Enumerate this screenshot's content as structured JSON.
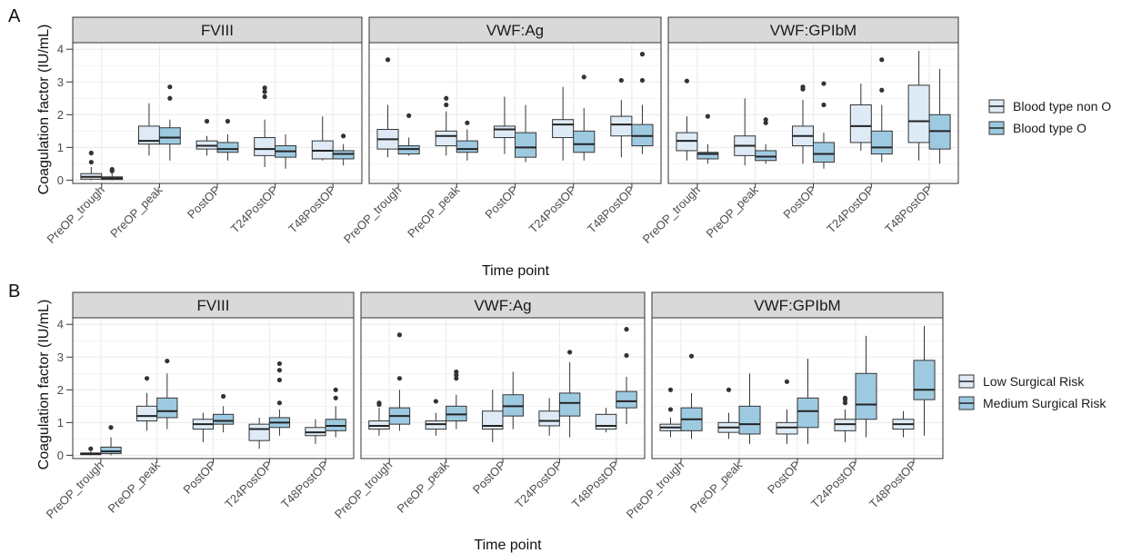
{
  "figure": {
    "panel_labels": [
      "A",
      "B"
    ],
    "x_axis_title": "Time point",
    "y_axis_title": "Coagulation factor (IU/mL)"
  },
  "colors": {
    "series_light": "#deebf7",
    "series_dark": "#9ecae1",
    "strip_fill": "#d9d9d9",
    "grid": "#ebebeb",
    "outlier": "#333333"
  },
  "chart_data": [
    {
      "type": "boxplot",
      "panel": "A",
      "facets": [
        "FVIII",
        "VWF:Ag",
        "VWF:GPIbM"
      ],
      "categories": [
        "PreOP_trough",
        "PreOP_peak",
        "PostOP",
        "T24PostOP",
        "T48PostOP"
      ],
      "xlabel": "Time point",
      "ylabel": "Coagulation factor (IU/mL)",
      "ylim": [
        -0.1,
        4.2
      ],
      "yticks": [
        0,
        1,
        2,
        3,
        4
      ],
      "grid": true,
      "legend_position": "right",
      "series": [
        {
          "name": "Blood type non O",
          "color": "#deebf7",
          "facets": {
            "FVIII": [
              {
                "min": 0.0,
                "q1": 0.03,
                "median": 0.1,
                "q3": 0.2,
                "max": 0.4,
                "outliers": [
                  0.55,
                  0.83
                ]
              },
              {
                "min": 0.75,
                "q1": 1.1,
                "median": 1.2,
                "q3": 1.65,
                "max": 2.35,
                "outliers": []
              },
              {
                "min": 0.75,
                "q1": 0.95,
                "median": 1.05,
                "q3": 1.2,
                "max": 1.35,
                "outliers": [
                  1.8
                ]
              },
              {
                "min": 0.4,
                "q1": 0.75,
                "median": 0.95,
                "q3": 1.3,
                "max": 1.85,
                "outliers": [
                  2.55,
                  2.7,
                  2.82
                ]
              },
              {
                "min": 0.6,
                "q1": 0.65,
                "median": 0.9,
                "q3": 1.2,
                "max": 1.95,
                "outliers": []
              }
            ],
            "VWF:Ag": [
              {
                "min": 0.7,
                "q1": 0.95,
                "median": 1.25,
                "q3": 1.55,
                "max": 2.3,
                "outliers": [
                  3.68
                ]
              },
              {
                "min": 0.75,
                "q1": 1.05,
                "median": 1.35,
                "q3": 1.5,
                "max": 2.1,
                "outliers": [
                  2.3,
                  2.5
                ]
              },
              {
                "min": 0.8,
                "q1": 1.3,
                "median": 1.55,
                "q3": 1.65,
                "max": 2.55,
                "outliers": []
              },
              {
                "min": 0.6,
                "q1": 1.3,
                "median": 1.7,
                "q3": 1.85,
                "max": 2.85,
                "outliers": []
              },
              {
                "min": 0.7,
                "q1": 1.35,
                "median": 1.7,
                "q3": 1.95,
                "max": 2.45,
                "outliers": [
                  3.05
                ]
              }
            ],
            "VWF:GPIbM": [
              {
                "min": 0.6,
                "q1": 0.9,
                "median": 1.2,
                "q3": 1.45,
                "max": 1.95,
                "outliers": [
                  3.03
                ]
              },
              {
                "min": 0.45,
                "q1": 0.75,
                "median": 1.05,
                "q3": 1.35,
                "max": 2.5,
                "outliers": []
              },
              {
                "min": 0.5,
                "q1": 1.05,
                "median": 1.35,
                "q3": 1.65,
                "max": 2.45,
                "outliers": [
                  2.78,
                  2.85
                ]
              },
              {
                "min": 0.9,
                "q1": 1.15,
                "median": 1.65,
                "q3": 2.3,
                "max": 2.95,
                "outliers": []
              },
              {
                "min": 0.6,
                "q1": 1.15,
                "median": 1.8,
                "q3": 2.9,
                "max": 3.95,
                "outliers": []
              }
            ]
          }
        },
        {
          "name": "Blood type O",
          "color": "#9ecae1",
          "facets": {
            "FVIII": [
              {
                "min": 0.0,
                "q1": 0.02,
                "median": 0.06,
                "q3": 0.1,
                "max": 0.2,
                "outliers": [
                  0.28,
                  0.33
                ]
              },
              {
                "min": 0.6,
                "q1": 1.1,
                "median": 1.3,
                "q3": 1.6,
                "max": 1.85,
                "outliers": [
                  2.5,
                  2.85
                ]
              },
              {
                "min": 0.6,
                "q1": 0.85,
                "median": 0.95,
                "q3": 1.15,
                "max": 1.4,
                "outliers": [
                  1.8
                ]
              },
              {
                "min": 0.35,
                "q1": 0.7,
                "median": 0.88,
                "q3": 1.05,
                "max": 1.4,
                "outliers": []
              },
              {
                "min": 0.45,
                "q1": 0.65,
                "median": 0.8,
                "q3": 0.9,
                "max": 1.1,
                "outliers": [
                  1.35
                ]
              }
            ],
            "VWF:Ag": [
              {
                "min": 0.75,
                "q1": 0.8,
                "median": 0.95,
                "q3": 1.05,
                "max": 1.3,
                "outliers": [
                  1.97
                ]
              },
              {
                "min": 0.6,
                "q1": 0.85,
                "median": 0.95,
                "q3": 1.2,
                "max": 1.55,
                "outliers": [
                  1.75
                ]
              },
              {
                "min": 0.55,
                "q1": 0.7,
                "median": 1.0,
                "q3": 1.45,
                "max": 2.3,
                "outliers": []
              },
              {
                "min": 0.6,
                "q1": 0.85,
                "median": 1.1,
                "q3": 1.5,
                "max": 2.2,
                "outliers": [
                  3.15
                ]
              },
              {
                "min": 0.8,
                "q1": 1.05,
                "median": 1.35,
                "q3": 1.7,
                "max": 2.3,
                "outliers": [
                  3.05,
                  3.85
                ]
              }
            ],
            "VWF:GPIbM": [
              {
                "min": 0.5,
                "q1": 0.65,
                "median": 0.8,
                "q3": 0.85,
                "max": 1.1,
                "outliers": [
                  1.95
                ]
              },
              {
                "min": 0.5,
                "q1": 0.6,
                "median": 0.72,
                "q3": 0.9,
                "max": 1.1,
                "outliers": [
                  1.75,
                  1.85
                ]
              },
              {
                "min": 0.35,
                "q1": 0.55,
                "median": 0.8,
                "q3": 1.15,
                "max": 1.45,
                "outliers": [
                  2.3,
                  2.95
                ]
              },
              {
                "min": 0.55,
                "q1": 0.8,
                "median": 1.0,
                "q3": 1.5,
                "max": 2.3,
                "outliers": [
                  2.75,
                  3.68
                ]
              },
              {
                "min": 0.5,
                "q1": 0.95,
                "median": 1.5,
                "q3": 2.0,
                "max": 3.4,
                "outliers": []
              }
            ]
          }
        }
      ]
    },
    {
      "type": "boxplot",
      "panel": "B",
      "facets": [
        "FVIII",
        "VWF:Ag",
        "VWF:GPIbM"
      ],
      "categories": [
        "PreOP_trough",
        "PreOP_peak",
        "PostOP",
        "T24PostOP",
        "T48PostOP"
      ],
      "xlabel": "Time point",
      "ylabel": "Coagulation factor (IU/mL)",
      "ylim": [
        -0.1,
        4.2
      ],
      "yticks": [
        0,
        1,
        2,
        3,
        4
      ],
      "grid": true,
      "legend_position": "right",
      "series": [
        {
          "name": "Low Surgical Risk",
          "color": "#deebf7",
          "facets": {
            "FVIII": [
              {
                "min": 0.0,
                "q1": 0.02,
                "median": 0.05,
                "q3": 0.07,
                "max": 0.12,
                "outliers": [
                  0.2
                ]
              },
              {
                "min": 0.75,
                "q1": 1.05,
                "median": 1.2,
                "q3": 1.5,
                "max": 1.9,
                "outliers": [
                  2.35
                ]
              },
              {
                "min": 0.4,
                "q1": 0.8,
                "median": 0.95,
                "q3": 1.1,
                "max": 1.3,
                "outliers": []
              },
              {
                "min": 0.2,
                "q1": 0.45,
                "median": 0.8,
                "q3": 0.95,
                "max": 1.15,
                "outliers": []
              },
              {
                "min": 0.35,
                "q1": 0.6,
                "median": 0.7,
                "q3": 0.85,
                "max": 1.1,
                "outliers": []
              }
            ],
            "VWF:Ag": [
              {
                "min": 0.6,
                "q1": 0.8,
                "median": 0.9,
                "q3": 1.05,
                "max": 1.45,
                "outliers": [
                  1.55,
                  1.6
                ]
              },
              {
                "min": 0.6,
                "q1": 0.8,
                "median": 0.95,
                "q3": 1.05,
                "max": 1.3,
                "outliers": [
                  1.65
                ]
              },
              {
                "min": 0.4,
                "q1": 0.8,
                "median": 0.9,
                "q3": 1.35,
                "max": 2.0,
                "outliers": []
              },
              {
                "min": 0.6,
                "q1": 0.9,
                "median": 1.05,
                "q3": 1.35,
                "max": 1.75,
                "outliers": []
              },
              {
                "min": 0.7,
                "q1": 0.8,
                "median": 0.9,
                "q3": 1.25,
                "max": 1.45,
                "outliers": []
              }
            ],
            "VWF:GPIbM": [
              {
                "min": 0.55,
                "q1": 0.75,
                "median": 0.85,
                "q3": 0.95,
                "max": 1.15,
                "outliers": [
                  1.4,
                  2.0
                ]
              },
              {
                "min": 0.5,
                "q1": 0.7,
                "median": 0.85,
                "q3": 1.0,
                "max": 1.3,
                "outliers": [
                  2.0
                ]
              },
              {
                "min": 0.35,
                "q1": 0.65,
                "median": 0.85,
                "q3": 1.0,
                "max": 1.4,
                "outliers": [
                  2.25
                ]
              },
              {
                "min": 0.4,
                "q1": 0.75,
                "median": 0.95,
                "q3": 1.1,
                "max": 1.4,
                "outliers": [
                  1.6,
                  1.7,
                  1.75
                ]
              },
              {
                "min": 0.55,
                "q1": 0.8,
                "median": 0.95,
                "q3": 1.1,
                "max": 1.35,
                "outliers": []
              }
            ]
          }
        },
        {
          "name": "Medium Surgical Risk",
          "color": "#9ecae1",
          "facets": {
            "FVIII": [
              {
                "min": 0.0,
                "q1": 0.05,
                "median": 0.12,
                "q3": 0.25,
                "max": 0.55,
                "outliers": [
                  0.85
                ]
              },
              {
                "min": 0.8,
                "q1": 1.15,
                "median": 1.35,
                "q3": 1.75,
                "max": 2.5,
                "outliers": [
                  2.88
                ]
              },
              {
                "min": 0.7,
                "q1": 0.95,
                "median": 1.05,
                "q3": 1.25,
                "max": 1.5,
                "outliers": [
                  1.8
                ]
              },
              {
                "min": 0.6,
                "q1": 0.85,
                "median": 1.0,
                "q3": 1.15,
                "max": 1.4,
                "outliers": [
                  1.6,
                  2.3,
                  2.6,
                  2.8
                ]
              },
              {
                "min": 0.55,
                "q1": 0.75,
                "median": 0.9,
                "q3": 1.1,
                "max": 1.5,
                "outliers": [
                  1.75,
                  2.0
                ]
              }
            ],
            "VWF:Ag": [
              {
                "min": 0.75,
                "q1": 0.95,
                "median": 1.2,
                "q3": 1.45,
                "max": 2.0,
                "outliers": [
                  2.35,
                  3.68
                ]
              },
              {
                "min": 0.8,
                "q1": 1.05,
                "median": 1.25,
                "q3": 1.5,
                "max": 1.85,
                "outliers": [
                  2.35,
                  2.45,
                  2.55
                ]
              },
              {
                "min": 0.8,
                "q1": 1.2,
                "median": 1.5,
                "q3": 1.85,
                "max": 2.55,
                "outliers": []
              },
              {
                "min": 0.55,
                "q1": 1.2,
                "median": 1.6,
                "q3": 1.9,
                "max": 2.85,
                "outliers": [
                  3.15
                ]
              },
              {
                "min": 0.95,
                "q1": 1.45,
                "median": 1.65,
                "q3": 1.95,
                "max": 2.4,
                "outliers": [
                  3.05,
                  3.85
                ]
              }
            ],
            "VWF:GPIbM": [
              {
                "min": 0.5,
                "q1": 0.75,
                "median": 1.1,
                "q3": 1.45,
                "max": 1.9,
                "outliers": [
                  3.03
                ]
              },
              {
                "min": 0.35,
                "q1": 0.65,
                "median": 0.95,
                "q3": 1.5,
                "max": 2.5,
                "outliers": []
              },
              {
                "min": 0.35,
                "q1": 0.85,
                "median": 1.35,
                "q3": 1.75,
                "max": 2.95,
                "outliers": []
              },
              {
                "min": 0.55,
                "q1": 1.1,
                "median": 1.55,
                "q3": 2.5,
                "max": 3.65,
                "outliers": []
              },
              {
                "min": 0.6,
                "q1": 1.7,
                "median": 2.0,
                "q3": 2.9,
                "max": 3.95,
                "outliers": []
              }
            ]
          }
        }
      ]
    }
  ]
}
